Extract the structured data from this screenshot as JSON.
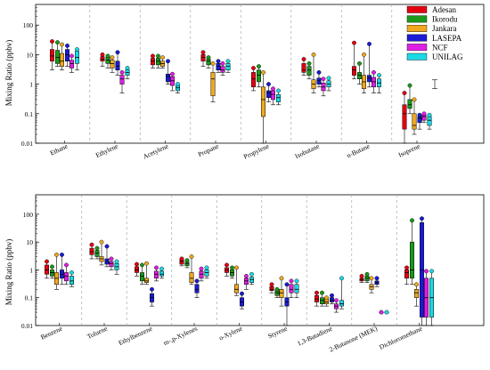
{
  "chart_data": [
    {
      "type": "box",
      "ylabel": "Mixing Ratio (ppbv)",
      "yscale": "log",
      "ylim": [
        0.01,
        500
      ],
      "yticks": [
        0.01,
        0.1,
        1,
        10,
        100
      ],
      "ytick_labels": [
        "0.01",
        "0.1",
        "1",
        "10",
        "100"
      ],
      "legend_position": "top-right",
      "series": [
        {
          "name": "Adesan",
          "color": "#e5000f"
        },
        {
          "name": "Ikorodu",
          "color": "#1a9a1a"
        },
        {
          "name": "Jankara",
          "color": "#f0a91f"
        },
        {
          "name": "LASEPA",
          "color": "#1b1bd6"
        },
        {
          "name": "NCF",
          "color": "#e01fe6"
        },
        {
          "name": "UNILAG",
          "color": "#1cd9e6"
        }
      ],
      "categories": [
        "Ethane",
        "Ethylene",
        "Acetylene",
        "Propane",
        "Propylene",
        "Isobutane",
        "n-Butane",
        "Isoprene"
      ],
      "boxes": [
        [
          [
            3,
            6,
            9,
            15,
            28
          ],
          [
            4,
            5,
            8,
            14,
            26
          ],
          [
            3,
            4,
            6,
            11,
            22
          ],
          [
            4,
            6,
            10,
            15,
            20
          ],
          [
            2.5,
            3.5,
            5,
            6.5,
            9
          ],
          [
            3,
            5,
            8,
            13,
            15
          ]
        ],
        [
          [
            4,
            6,
            7,
            8.5,
            10
          ],
          [
            3.5,
            5,
            6.5,
            8,
            9
          ],
          [
            2.5,
            3.5,
            5,
            6.5,
            8
          ],
          [
            2,
            3,
            4,
            6,
            12
          ],
          [
            0.5,
            1,
            1.5,
            2,
            2.5
          ],
          [
            1.5,
            2,
            2.5,
            3,
            3.5
          ]
        ],
        [
          [
            3.5,
            4.5,
            6,
            7.5,
            9
          ],
          [
            3.5,
            4.5,
            6,
            7.5,
            9
          ],
          [
            3.5,
            4,
            5,
            6,
            8
          ],
          [
            1,
            1.2,
            1.8,
            2.2,
            6
          ],
          [
            0.6,
            0.9,
            1.3,
            1.8,
            2.2
          ],
          [
            0.5,
            0.6,
            0.75,
            0.9,
            1
          ]
        ],
        [
          [
            4,
            6,
            8,
            10,
            12
          ],
          [
            3.5,
            4.5,
            6,
            7,
            8
          ],
          [
            0.25,
            0.4,
            1.5,
            2.5,
            5
          ],
          [
            2.5,
            3,
            4,
            5,
            6
          ],
          [
            2,
            2.5,
            3,
            4,
            5
          ],
          [
            2.5,
            3,
            4,
            5,
            6
          ]
        ],
        [
          [
            0.6,
            0.8,
            1.5,
            2.5,
            3.5
          ],
          [
            0.8,
            1.2,
            2,
            3,
            4
          ],
          [
            0.01,
            0.08,
            0.3,
            0.8,
            2.5
          ],
          [
            0.25,
            0.35,
            0.5,
            0.6,
            1
          ],
          [
            0.2,
            0.3,
            0.45,
            0.6,
            0.7
          ],
          [
            0.2,
            0.25,
            0.35,
            0.45,
            0.6
          ]
        ],
        [
          [
            2,
            2.5,
            3,
            5,
            7
          ],
          [
            1.5,
            2,
            3,
            4,
            5
          ],
          [
            0.5,
            0.7,
            1,
            1.4,
            10
          ],
          [
            0.8,
            1,
            1.3,
            1.6,
            2.5
          ],
          [
            0.4,
            0.6,
            0.8,
            1.1,
            1.5
          ],
          [
            0.6,
            0.8,
            1,
            1.3,
            1.6
          ]
        ],
        [
          [
            1.5,
            2,
            3,
            4,
            25
          ],
          [
            1,
            1.5,
            2,
            2.5,
            5
          ],
          [
            0.5,
            0.7,
            1.2,
            2,
            10
          ],
          [
            0.8,
            1.2,
            1.6,
            2,
            23
          ],
          [
            0.5,
            0.8,
            1.2,
            1.7,
            2.5
          ],
          [
            0.5,
            0.8,
            1.1,
            1.5,
            2
          ]
        ],
        [
          [
            0.01,
            0.03,
            0.1,
            0.2,
            0.5
          ],
          [
            0.1,
            0.15,
            0.2,
            0.3,
            0.9
          ],
          [
            0.02,
            0.03,
            0.04,
            0.1,
            0.3
          ],
          [
            0.03,
            0.05,
            0.07,
            0.08,
            0.09
          ],
          [
            0.05,
            0.06,
            0.08,
            0.09,
            0.1
          ],
          [
            0.03,
            0.04,
            0.06,
            0.08,
            0.09
          ]
        ]
      ],
      "extra_whiskers": [
        {
          "category": "Isoprene",
          "low": 0.7,
          "high": 1.4
        }
      ]
    },
    {
      "type": "box",
      "ylabel": "Mixing Ratio (ppbv)",
      "yscale": "log",
      "ylim": [
        0.01,
        500
      ],
      "yticks": [
        0.01,
        0.1,
        1,
        10,
        100
      ],
      "ytick_labels": [
        "0.01",
        "0.1",
        "1",
        "10",
        "100"
      ],
      "categories": [
        "Benzene",
        "Toluene",
        "Ethylbenzene",
        "m-,p-Xylenes",
        "o-Xylene",
        "Styrene",
        "1,3-Butadiene",
        "2-Butanone (MEK)",
        "Dichloromethane"
      ],
      "boxes": [
        [
          [
            0.5,
            0.7,
            1,
            1.5,
            2
          ],
          [
            0.5,
            0.6,
            0.8,
            1,
            1.3
          ],
          [
            0.2,
            0.3,
            0.5,
            0.8,
            3.5
          ],
          [
            0.3,
            0.5,
            0.7,
            1,
            3.5
          ],
          [
            0.3,
            0.4,
            0.6,
            0.8,
            1.5
          ],
          [
            0.25,
            0.3,
            0.4,
            0.6,
            0.8
          ]
        ],
        [
          [
            2.5,
            3.5,
            4.5,
            6,
            8
          ],
          [
            2.5,
            3,
            4,
            5,
            6
          ],
          [
            1.5,
            2,
            2.5,
            3,
            10
          ],
          [
            1.3,
            1.6,
            2,
            2.5,
            7
          ],
          [
            1,
            1.3,
            1.7,
            2,
            2.5
          ],
          [
            0.7,
            1,
            1.3,
            1.7,
            2
          ]
        ],
        [
          [
            0.6,
            0.8,
            1,
            1.3,
            1.6
          ],
          [
            0.3,
            0.4,
            0.6,
            0.8,
            1.5
          ],
          [
            0.3,
            0.35,
            0.4,
            0.5,
            1.7
          ],
          [
            0.05,
            0.07,
            0.1,
            0.14,
            0.2
          ],
          [
            0.4,
            0.5,
            0.7,
            0.9,
            1.2
          ],
          [
            0.5,
            0.6,
            0.7,
            0.9,
            1.1
          ]
        ],
        [
          [
            1.4,
            1.6,
            2,
            2.3,
            2.5
          ],
          [
            1.2,
            1.4,
            1.7,
            1.9,
            2.2
          ],
          [
            0.3,
            0.35,
            0.5,
            0.8,
            3
          ],
          [
            0.1,
            0.15,
            0.2,
            0.3,
            0.4
          ],
          [
            0.4,
            0.5,
            0.7,
            0.9,
            1.1
          ],
          [
            0.5,
            0.6,
            0.8,
            1,
            1.2
          ]
        ],
        [
          [
            0.6,
            0.8,
            1,
            1.2,
            1.5
          ],
          [
            0.5,
            0.6,
            0.8,
            1,
            1.2
          ],
          [
            0.12,
            0.15,
            0.2,
            0.3,
            1.2
          ],
          [
            0.04,
            0.05,
            0.07,
            0.1,
            0.14
          ],
          [
            0.2,
            0.3,
            0.4,
            0.5,
            0.6
          ],
          [
            0.3,
            0.35,
            0.45,
            0.55,
            0.7
          ]
        ],
        [
          [
            0.15,
            0.18,
            0.2,
            0.25,
            0.3
          ],
          [
            0.1,
            0.12,
            0.15,
            0.18,
            0.2
          ],
          [
            0.05,
            0.1,
            0.15,
            0.2,
            0.5
          ],
          [
            0.01,
            0.05,
            0.07,
            0.1,
            0.3
          ],
          [
            0.1,
            0.15,
            0.2,
            0.3,
            0.4
          ],
          [
            0.1,
            0.15,
            0.2,
            0.3,
            0.4
          ]
        ],
        [
          [
            0.05,
            0.07,
            0.09,
            0.12,
            0.15
          ],
          [
            0.05,
            0.06,
            0.08,
            0.1,
            0.15
          ],
          [
            0.05,
            0.06,
            0.07,
            0.09,
            0.1
          ],
          [
            0.06,
            0.07,
            0.08,
            0.1,
            0.12
          ],
          [
            0.03,
            0.04,
            0.05,
            0.06,
            0.08
          ],
          [
            0.04,
            0.05,
            0.06,
            0.08,
            0.5
          ]
        ],
        [
          [
            0.35,
            0.4,
            0.45,
            0.5,
            0.6
          ],
          [
            0.35,
            0.4,
            0.5,
            0.6,
            0.7
          ],
          [
            0.15,
            0.2,
            0.25,
            0.3,
            0.5
          ],
          [
            0.25,
            0.3,
            0.35,
            0.4,
            0.5
          ],
          [
            0.03,
            0.03,
            0.03,
            0.03,
            0.03
          ],
          [
            0.03,
            0.03,
            0.03,
            0.03,
            0.03
          ]
        ],
        [
          [
            0.3,
            0.5,
            0.8,
            1,
            1.2
          ],
          [
            0.3,
            0.5,
            1,
            10,
            60
          ],
          [
            0.05,
            0.1,
            0.15,
            0.2,
            0.3
          ],
          [
            0.01,
            0.02,
            1,
            50,
            70
          ],
          [
            0.01,
            0.02,
            0.1,
            0.5,
            0.9
          ],
          [
            0.01,
            0.02,
            0.1,
            0.5,
            0.9
          ]
        ]
      ]
    }
  ]
}
